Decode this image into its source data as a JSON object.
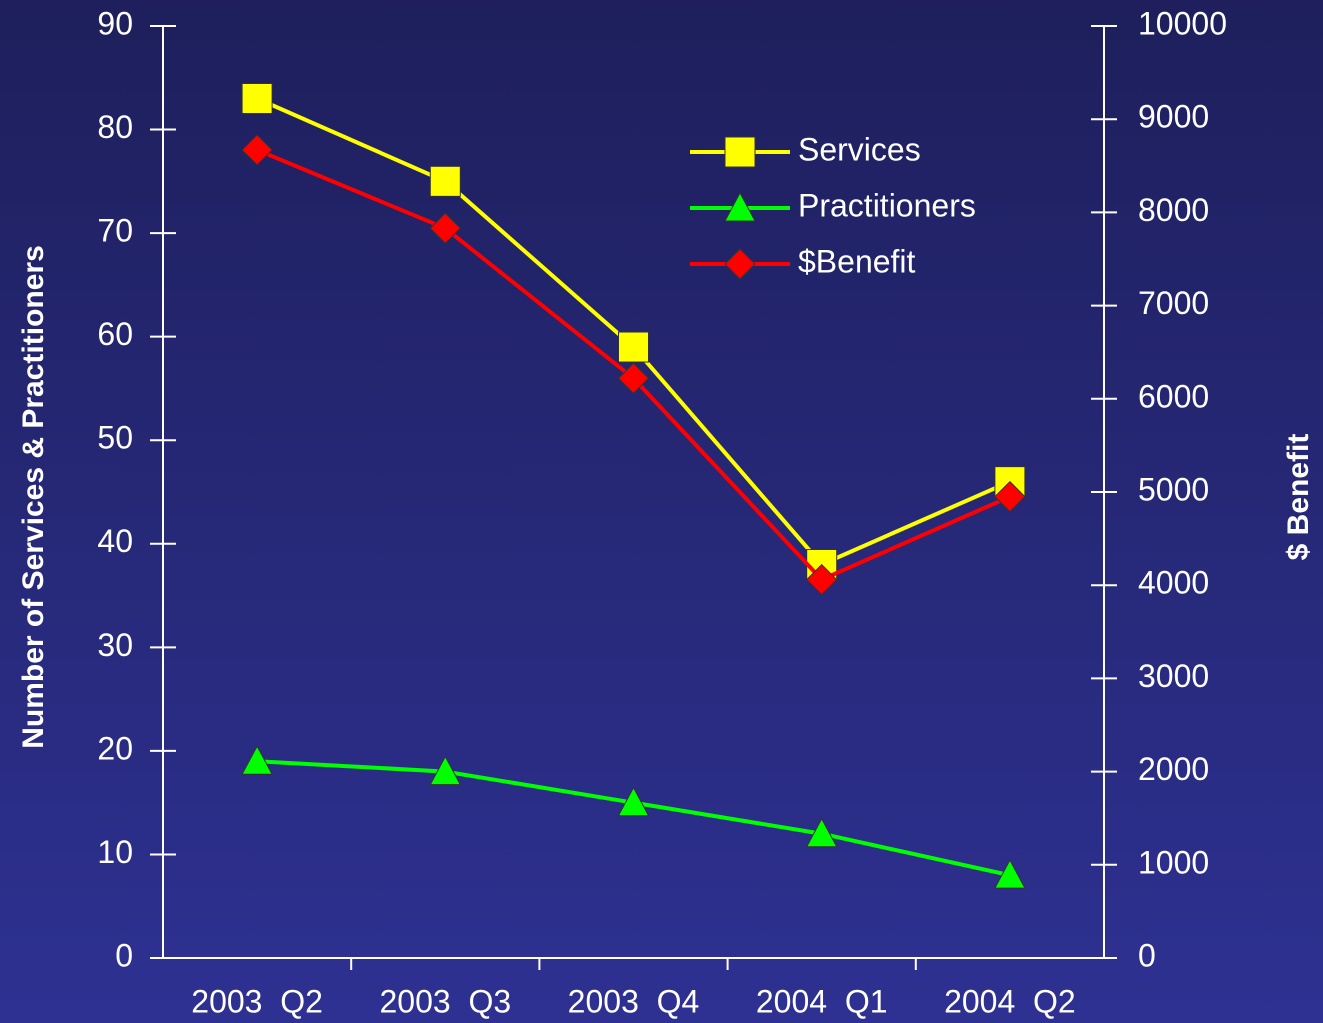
{
  "chart_data": {
    "type": "line",
    "categories": [
      "2003  Q2",
      "2003  Q3",
      "2003  Q4",
      "2004  Q1",
      "2004  Q2"
    ],
    "series": [
      {
        "name": "Services",
        "color": "#ffff00",
        "marker": "square",
        "values": [
          83,
          75,
          59,
          38,
          46
        ]
      },
      {
        "name": "Practitioners",
        "color": "#00ff00",
        "marker": "triangle",
        "values": [
          19,
          18,
          15,
          12,
          8
        ]
      },
      {
        "name": "$Benefit",
        "color": "#ff0000",
        "marker": "diamond",
        "axis": "y2",
        "values": [
          8670,
          7830,
          6220,
          4060,
          4950
        ]
      }
    ],
    "ylabel": "Number of Services & Practitioners",
    "y2label": "$ Benefit",
    "ylim": [
      0,
      90
    ],
    "yticks": [
      0,
      10,
      20,
      30,
      40,
      50,
      60,
      70,
      80,
      90
    ],
    "y2lim": [
      0,
      10000
    ],
    "y2ticks": [
      0,
      1000,
      2000,
      3000,
      4000,
      5000,
      6000,
      7000,
      8000,
      9000,
      10000
    ],
    "legend": "top-right",
    "grid": false
  }
}
